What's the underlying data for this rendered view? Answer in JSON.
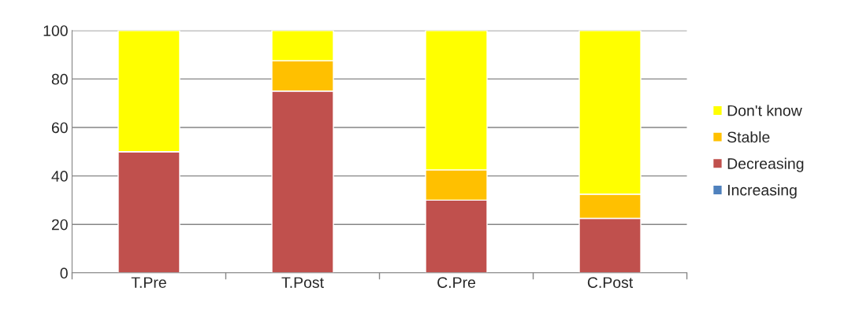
{
  "chart_data": {
    "type": "bar",
    "stacked": true,
    "categories": [
      "T.Pre",
      "T.Post",
      "C.Pre",
      "C.Post"
    ],
    "series": [
      {
        "name": "Increasing",
        "color": "#4f81bd",
        "values": [
          0,
          0,
          0,
          0
        ]
      },
      {
        "name": "Decreasing",
        "color": "#c0504d",
        "values": [
          50,
          75,
          30,
          22.5
        ]
      },
      {
        "name": "Stable",
        "color": "#ffc000",
        "values": [
          0,
          12.5,
          12.5,
          10
        ]
      },
      {
        "name": "Don't know",
        "color": "#ffff00",
        "values": [
          50,
          12.5,
          57.5,
          67.5
        ]
      }
    ],
    "ylim": [
      0,
      100
    ],
    "yticks": [
      0,
      20,
      40,
      60,
      80,
      100
    ],
    "grid": "y",
    "legend": "right"
  }
}
